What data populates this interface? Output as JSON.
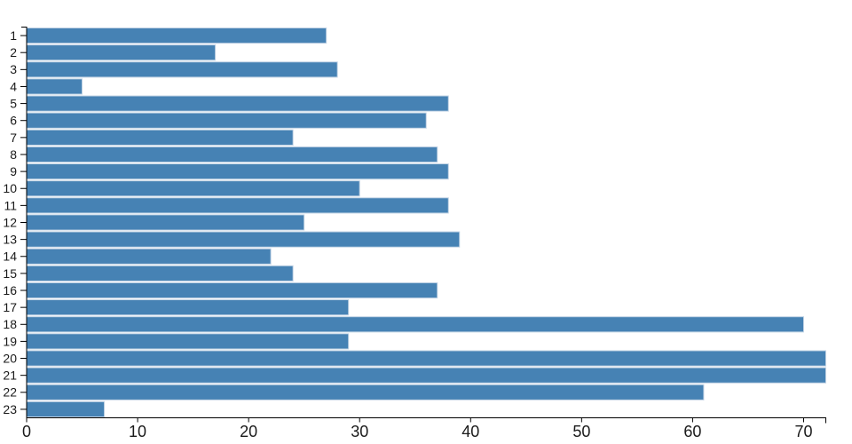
{
  "chart_data": {
    "type": "bar",
    "orientation": "horizontal",
    "title": "",
    "xlabel": "",
    "ylabel": "",
    "categories": [
      "1",
      "2",
      "3",
      "4",
      "5",
      "6",
      "7",
      "8",
      "9",
      "10",
      "11",
      "12",
      "13",
      "14",
      "15",
      "16",
      "17",
      "18",
      "19",
      "20",
      "21",
      "22",
      "23"
    ],
    "values": [
      27,
      17,
      28,
      5,
      38,
      36,
      24,
      37,
      38,
      30,
      38,
      25,
      39,
      22,
      24,
      37,
      29,
      70,
      29,
      72,
      72,
      61,
      7
    ],
    "xlim": [
      0,
      72
    ],
    "xticks": [
      0,
      10,
      20,
      30,
      40,
      50,
      60,
      70
    ],
    "grid": false,
    "legend": false,
    "colors": {
      "bar_fill": "#4682b4",
      "bar_stroke": "#c3d4e5",
      "axis_line": "#000000",
      "tick_text": "#1a1a1a"
    }
  }
}
